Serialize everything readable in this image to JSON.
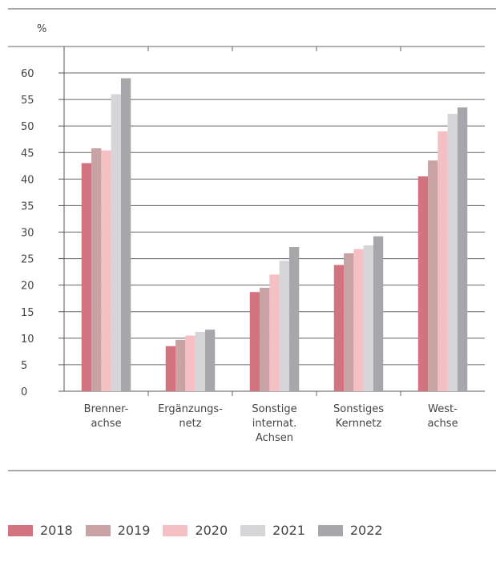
{
  "chart_data": {
    "type": "bar",
    "unit_label": "%",
    "categories": [
      [
        "Brenner-",
        "achse"
      ],
      [
        "Ergänzungs-",
        "netz"
      ],
      [
        "Sonstige",
        "internat.",
        "Achsen"
      ],
      [
        "Sonstiges",
        "Kernnetz"
      ],
      [
        "West-",
        "achse"
      ]
    ],
    "ylim": [
      0,
      60
    ],
    "yticks": [
      0,
      5,
      10,
      15,
      20,
      25,
      30,
      35,
      40,
      45,
      50,
      55,
      60
    ],
    "grid": true,
    "legend_placement": "bottom",
    "series": [
      {
        "name": "2018",
        "color": "#d3737f",
        "values": [
          43.0,
          8.5,
          18.7,
          23.8,
          40.5
        ]
      },
      {
        "name": "2019",
        "color": "#c9a2a4",
        "values": [
          45.8,
          9.7,
          19.5,
          26.0,
          43.5
        ]
      },
      {
        "name": "2020",
        "color": "#f4c0c4",
        "values": [
          45.4,
          10.5,
          22.0,
          26.8,
          49.0
        ]
      },
      {
        "name": "2021",
        "color": "#d6d6d8",
        "values": [
          56.0,
          11.2,
          24.6,
          27.5,
          52.3
        ]
      },
      {
        "name": "2022",
        "color": "#a7a7ab",
        "values": [
          59.0,
          11.6,
          27.2,
          29.2,
          53.5
        ]
      }
    ]
  }
}
